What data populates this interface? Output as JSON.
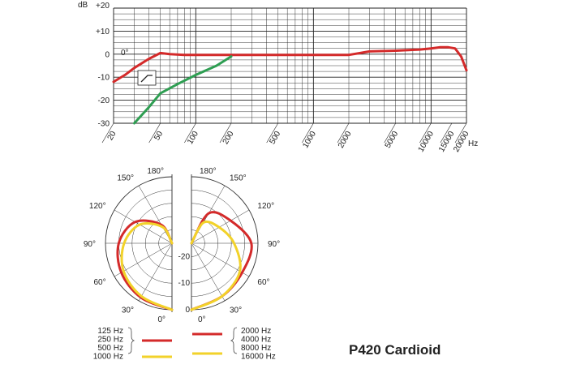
{
  "chart_data": [
    {
      "type": "line",
      "xscale": "log",
      "xlim": [
        20,
        20000
      ],
      "ylim": [
        -30,
        20
      ],
      "ylabel": "dB",
      "xlabel": "Hz",
      "x_ticks": [
        "20",
        "50",
        "100",
        "200",
        "500",
        "1000",
        "2000",
        "5000",
        "10000",
        "15000",
        "20000"
      ],
      "y_ticks": [
        "+20",
        "+10",
        "0",
        "-10",
        "-20",
        "-30"
      ],
      "annotation": "0°",
      "grid": true,
      "series": [
        {
          "color": "#d42a2a",
          "x": [
            20,
            25,
            30,
            40,
            50,
            60,
            80,
            100,
            200,
            500,
            1000,
            2000,
            2500,
            3000,
            5000,
            8000,
            10000,
            12000,
            14000,
            16000,
            18000,
            20000
          ],
          "y": [
            -12,
            -9,
            -6,
            -2,
            0.5,
            0,
            -0.3,
            -0.3,
            -0.3,
            -0.3,
            -0.3,
            -0.3,
            0.5,
            1.2,
            1.5,
            2,
            2.5,
            3,
            3,
            2.5,
            -1,
            -7
          ]
        },
        {
          "color": "#2e9e52",
          "x": [
            30,
            40,
            50,
            70,
            100,
            150,
            200
          ],
          "y": [
            -30,
            -23,
            -17,
            -13,
            -9,
            -5,
            -1
          ]
        }
      ]
    },
    {
      "type": "polar",
      "angle_labels_left": [
        "180°",
        "150°",
        "120°",
        "90°",
        "60°",
        "30°",
        "0°"
      ],
      "angle_labels_right": [
        "180°",
        "150°",
        "120°",
        "90°",
        "60°",
        "30°",
        "0°"
      ],
      "radial_labels": [
        "-20",
        "-10",
        "0"
      ],
      "legend": {
        "left_freqs": [
          "125 Hz",
          "250 Hz",
          "500 Hz",
          "1000 Hz"
        ],
        "right_freqs": [
          "2000 Hz",
          "4000 Hz",
          "8000 Hz",
          "16000 Hz"
        ]
      },
      "series": [
        {
          "side": "left",
          "color": "#d42a2a",
          "angle_deg": [
            0,
            30,
            60,
            90,
            120,
            150,
            180
          ],
          "db": [
            0,
            -1.5,
            -3,
            -5,
            -9,
            -17,
            -25
          ]
        },
        {
          "side": "left",
          "color": "#f2d22a",
          "angle_deg": [
            0,
            30,
            60,
            90,
            120,
            150,
            180
          ],
          "db": [
            0,
            -2,
            -4,
            -7,
            -11,
            -18,
            -25
          ]
        },
        {
          "side": "right",
          "color": "#d42a2a",
          "angle_deg": [
            0,
            30,
            60,
            90,
            120,
            150,
            180
          ],
          "db": [
            0,
            -2,
            -3,
            -2.5,
            -8,
            -12,
            -25
          ]
        },
        {
          "side": "right",
          "color": "#f2d22a",
          "angle_deg": [
            0,
            30,
            60,
            90,
            120,
            150,
            180
          ],
          "db": [
            0,
            -2,
            -4,
            -9,
            -13,
            -16,
            -25
          ]
        }
      ]
    }
  ],
  "product_title": "P420 Cardioid"
}
